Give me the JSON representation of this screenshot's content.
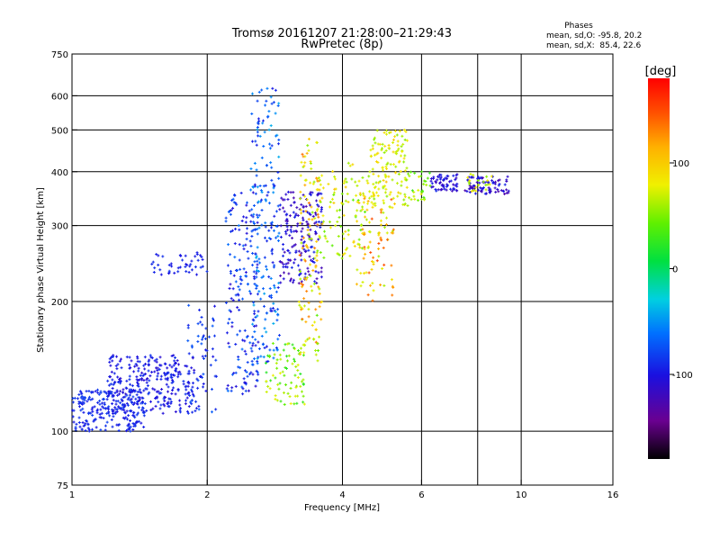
{
  "chart_data": {
    "type": "scatter",
    "title": "Tromsø 20161207 21:28:00–21:29:43",
    "subtitle": "RwPretec (8p)",
    "xlabel": "Frequency [MHz]",
    "ylabel": "Stationary phase Virtual Height [km]",
    "xscale": "log",
    "yscale": "log",
    "xlim": [
      1,
      16
    ],
    "ylim": [
      75,
      750
    ],
    "x_ticks": [
      1,
      2,
      4,
      6,
      10,
      16
    ],
    "x_ticklabels": [
      "1",
      "2",
      "4",
      "6",
      "10",
      "16"
    ],
    "x_gridlines": [
      2,
      4,
      6,
      8,
      10
    ],
    "y_ticks": [
      75,
      100,
      200,
      300,
      400,
      500,
      600,
      750
    ],
    "y_ticklabels": [
      "75",
      "100",
      "200",
      "300",
      "400",
      "500",
      "600",
      "750"
    ],
    "grid": true,
    "legend": {
      "title": "Phases",
      "lines": [
        "mean, sd,O: -95.8, 20.2",
        "mean, sd,X:  85.4, 22.6"
      ],
      "placement": "top-right"
    },
    "colorbar": {
      "label": "[deg]",
      "range": [
        -180,
        180
      ],
      "ticks": [
        100,
        0,
        -100
      ],
      "ticklabels": [
        "100",
        "0",
        "-100"
      ],
      "colormap": "rainbow"
    },
    "series": [
      {
        "name": "O",
        "phase_mean": -95.8,
        "phase_sd": 20.2
      },
      {
        "name": "X",
        "phase_mean": 85.4,
        "phase_sd": 22.6
      }
    ],
    "clusters": [
      {
        "x": [
          1.0,
          1.45
        ],
        "y": [
          100,
          125
        ],
        "phase": [
          -100,
          -80
        ],
        "n": 220
      },
      {
        "x": [
          1.2,
          1.9
        ],
        "y": [
          110,
          150
        ],
        "phase": [
          -110,
          -85
        ],
        "n": 300
      },
      {
        "x": [
          1.5,
          2.0
        ],
        "y": [
          230,
          260
        ],
        "phase": [
          -100,
          -85
        ],
        "n": 45
      },
      {
        "x": [
          1.8,
          2.1
        ],
        "y": [
          110,
          200
        ],
        "phase": [
          -100,
          -70
        ],
        "n": 60
      },
      {
        "x": [
          2.2,
          2.6
        ],
        "y": [
          120,
          360
        ],
        "phase": [
          -110,
          -60
        ],
        "n": 180
      },
      {
        "x": [
          2.5,
          2.9
        ],
        "y": [
          140,
          630
        ],
        "phase": [
          -100,
          -40
        ],
        "n": 200
      },
      {
        "x": [
          2.7,
          3.3
        ],
        "y": [
          115,
          160
        ],
        "phase": [
          20,
          80
        ],
        "n": 80
      },
      {
        "x": [
          2.9,
          3.6
        ],
        "y": [
          220,
          360
        ],
        "phase": [
          -130,
          -90
        ],
        "n": 180
      },
      {
        "x": [
          3.2,
          3.6
        ],
        "y": [
          140,
          480
        ],
        "phase": [
          40,
          140
        ],
        "n": 130
      },
      {
        "x": [
          3.5,
          4.6
        ],
        "y": [
          250,
          420
        ],
        "phase": [
          40,
          110
        ],
        "n": 110
      },
      {
        "x": [
          4.3,
          5.2
        ],
        "y": [
          200,
          380
        ],
        "phase": [
          60,
          150
        ],
        "n": 90
      },
      {
        "x": [
          4.6,
          5.6
        ],
        "y": [
          330,
          500
        ],
        "phase": [
          50,
          100
        ],
        "n": 130
      },
      {
        "x": [
          5.6,
          6.3
        ],
        "y": [
          340,
          400
        ],
        "phase": [
          20,
          80
        ],
        "n": 30
      },
      {
        "x": [
          6.3,
          7.2
        ],
        "y": [
          360,
          395
        ],
        "phase": [
          -120,
          -90
        ],
        "n": 60
      },
      {
        "x": [
          7.5,
          9.4
        ],
        "y": [
          355,
          390
        ],
        "phase": [
          -130,
          -90
        ],
        "n": 80
      },
      {
        "x": [
          7.6,
          8.6
        ],
        "y": [
          360,
          395
        ],
        "phase": [
          50,
          90
        ],
        "n": 20
      }
    ]
  }
}
